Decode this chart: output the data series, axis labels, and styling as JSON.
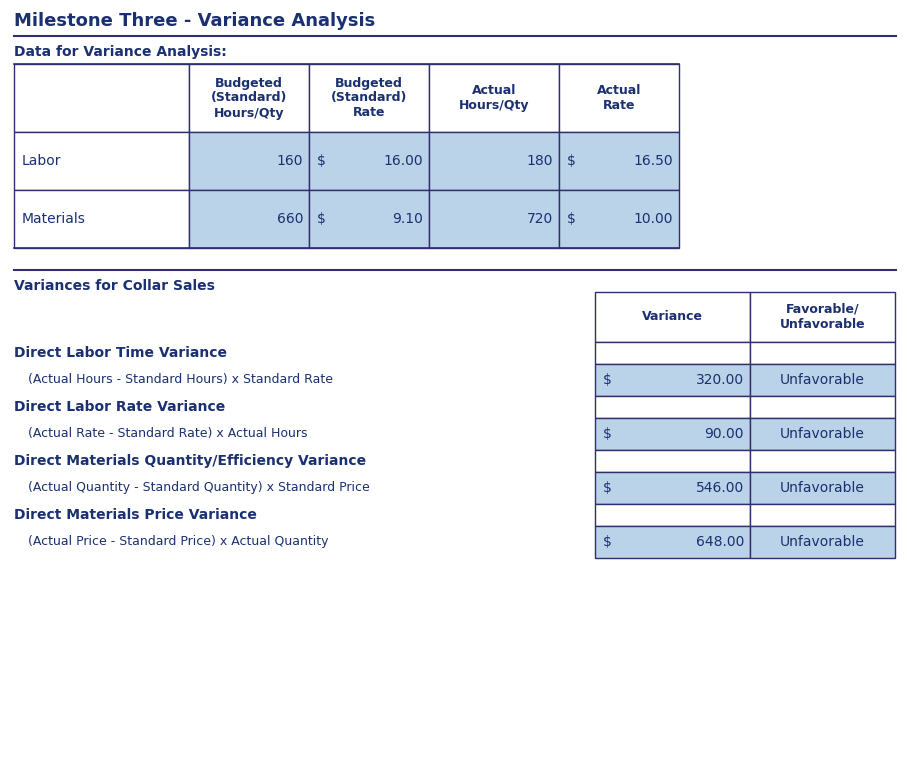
{
  "title": "Milestone Three - Variance Analysis",
  "bg_color": "#ffffff",
  "text_color": "#1a3070",
  "cell_bg_blue": "#bad3e8",
  "border_color": "#2f2f6e",
  "section1_label": "Data for Variance Analysis:",
  "table1_headers": [
    "",
    "Budgeted\n(Standard)\nHours/Qty",
    "Budgeted\n(Standard)\nRate",
    "Actual\nHours/Qty",
    "Actual\nRate"
  ],
  "table1_rows": [
    [
      "Labor",
      "160",
      "$ 16.00",
      "180",
      "$ 16.50"
    ],
    [
      "Materials",
      "660",
      "$ 9.10",
      "720",
      "$ 10.00"
    ]
  ],
  "section2_label": "Variances for Collar Sales",
  "variance_items": [
    {
      "title": "Direct Labor Time Variance",
      "formula": "(Actual Hours - Standard Hours) x Standard Rate",
      "variance": "320.00",
      "fav": "Unfavorable"
    },
    {
      "title": "Direct Labor Rate Variance",
      "formula": "(Actual Rate - Standard Rate) x Actual Hours",
      "variance": "90.00",
      "fav": "Unfavorable"
    },
    {
      "title": "Direct Materials Quantity/Efficiency Variance",
      "formula": "(Actual Quantity - Standard Quantity) x Standard Price",
      "variance": "546.00",
      "fav": "Unfavorable"
    },
    {
      "title": "Direct Materials Price Variance",
      "formula": "(Actual Price - Standard Price) x Actual Quantity",
      "variance": "648.00",
      "fav": "Unfavorable"
    }
  ]
}
